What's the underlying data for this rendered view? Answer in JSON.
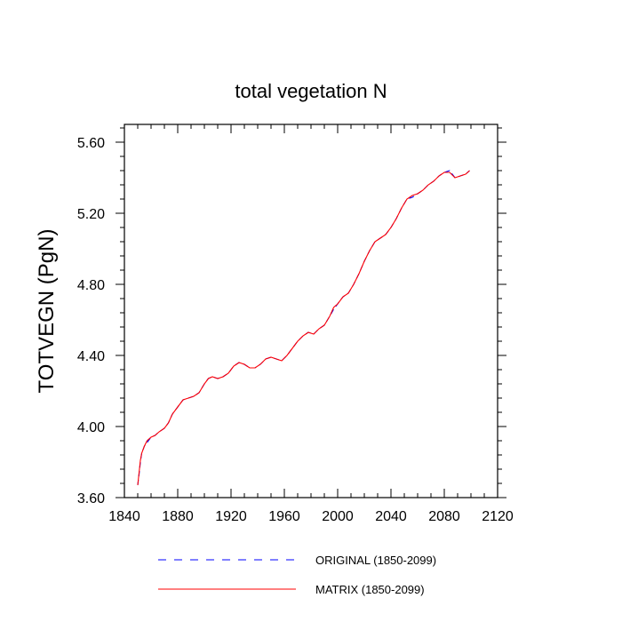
{
  "chart_data": {
    "type": "line",
    "title": "total vegetation N",
    "xlabel": "",
    "ylabel": "TOTVEGN  (PgN)",
    "xlim": [
      1840,
      2120
    ],
    "ylim": [
      3.6,
      5.7
    ],
    "x_ticks": [
      1840,
      1880,
      1920,
      1960,
      2000,
      2040,
      2080,
      2120
    ],
    "x_tick_labels": [
      "1840",
      "1880",
      "1920",
      "1960",
      "2000",
      "2040",
      "2080",
      "2120"
    ],
    "y_ticks": [
      3.6,
      4.0,
      4.4,
      4.8,
      5.2,
      5.6
    ],
    "y_tick_labels": [
      "3.60",
      "4.00",
      "4.40",
      "4.80",
      "5.20",
      "5.60"
    ],
    "grid": false,
    "legend_position": "bottom",
    "x": [
      1850,
      1851,
      1852,
      1853,
      1855,
      1857,
      1860,
      1863,
      1866,
      1870,
      1873,
      1876,
      1880,
      1884,
      1888,
      1892,
      1896,
      1900,
      1903,
      1906,
      1910,
      1914,
      1918,
      1922,
      1926,
      1930,
      1934,
      1938,
      1942,
      1946,
      1950,
      1954,
      1958,
      1962,
      1966,
      1970,
      1974,
      1978,
      1982,
      1986,
      1990,
      1994,
      1997,
      2000,
      2004,
      2008,
      2012,
      2016,
      2020,
      2024,
      2028,
      2032,
      2036,
      2040,
      2044,
      2048,
      2052,
      2056,
      2060,
      2064,
      2068,
      2072,
      2076,
      2080,
      2084,
      2088,
      2092,
      2096,
      2099
    ],
    "series": [
      {
        "name": "ORIGINAL (1850-2099)",
        "color": "#0000ff",
        "style": "dashed",
        "values": [
          3.67,
          3.73,
          3.8,
          3.85,
          3.89,
          3.91,
          3.94,
          3.95,
          3.97,
          3.99,
          4.02,
          4.07,
          4.11,
          4.15,
          4.16,
          4.17,
          4.19,
          4.24,
          4.27,
          4.28,
          4.27,
          4.28,
          4.3,
          4.34,
          4.36,
          4.35,
          4.33,
          4.33,
          4.35,
          4.38,
          4.39,
          4.38,
          4.37,
          4.4,
          4.44,
          4.48,
          4.51,
          4.53,
          4.52,
          4.55,
          4.57,
          4.62,
          4.66,
          4.69,
          4.73,
          4.75,
          4.8,
          4.86,
          4.93,
          4.99,
          5.04,
          5.06,
          5.08,
          5.12,
          5.17,
          5.23,
          5.28,
          5.29,
          5.31,
          5.33,
          5.36,
          5.38,
          5.41,
          5.43,
          5.44,
          5.4,
          5.41,
          5.42,
          5.44
        ]
      },
      {
        "name": "MATRIX (1850-2099)",
        "color": "#ff0000",
        "style": "solid",
        "values": [
          3.67,
          3.74,
          3.81,
          3.85,
          3.89,
          3.92,
          3.94,
          3.95,
          3.97,
          3.99,
          4.02,
          4.07,
          4.11,
          4.15,
          4.16,
          4.17,
          4.19,
          4.24,
          4.27,
          4.28,
          4.27,
          4.28,
          4.3,
          4.34,
          4.36,
          4.35,
          4.33,
          4.33,
          4.35,
          4.38,
          4.39,
          4.38,
          4.37,
          4.4,
          4.44,
          4.48,
          4.51,
          4.53,
          4.52,
          4.55,
          4.57,
          4.62,
          4.67,
          4.69,
          4.73,
          4.75,
          4.8,
          4.86,
          4.93,
          4.99,
          5.04,
          5.06,
          5.08,
          5.12,
          5.17,
          5.23,
          5.28,
          5.3,
          5.31,
          5.33,
          5.36,
          5.38,
          5.41,
          5.43,
          5.43,
          5.4,
          5.41,
          5.42,
          5.44
        ]
      }
    ]
  }
}
